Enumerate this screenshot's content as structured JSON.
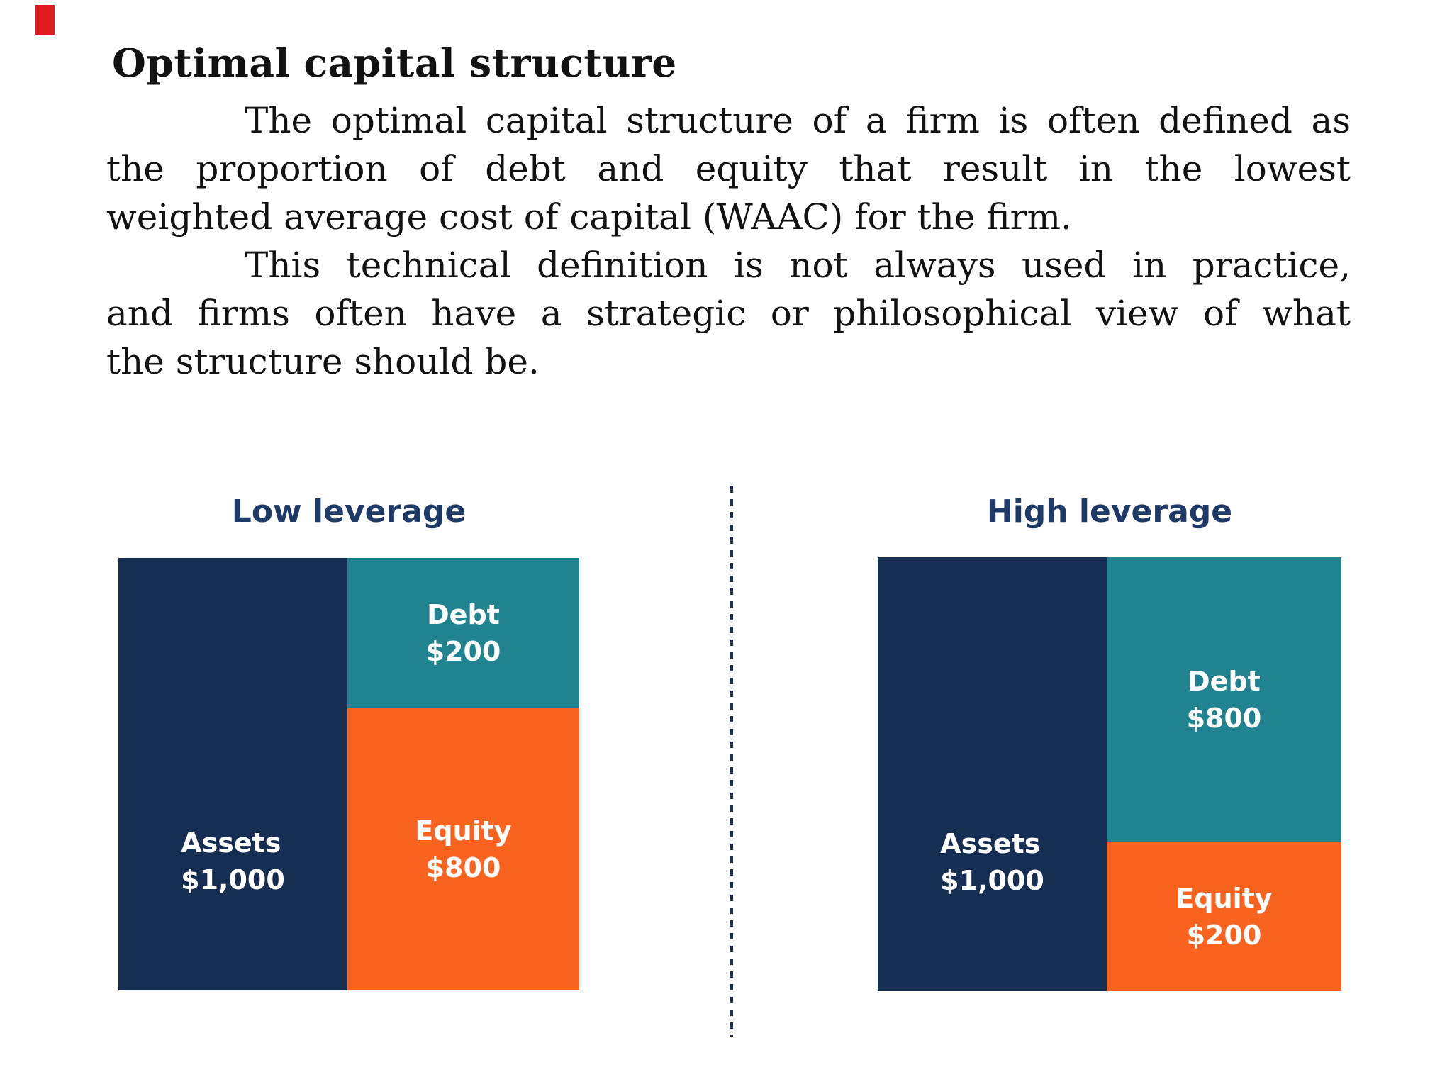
{
  "page": {
    "heading": "Optimal capital structure",
    "para1_lines": [
      "The optimal capital structure of a firm is often defined as",
      "the proportion of debt and equity that result in the lowest",
      "weighted average cost of capital (WAAC) for the firm."
    ],
    "para2_lines": [
      "This technical definition is not always used in practice,",
      "and firms often have a strategic or philosophical view of what",
      "the structure should be."
    ]
  },
  "colors": {
    "accent_red": "#E01B20",
    "navy": "#172E53",
    "teal": "#218290",
    "orange": "#F96320",
    "title_navy": "#1E3A66",
    "divider_navy": "#1E2F55",
    "text_black": "#121212",
    "label_white": "#FFFFFF"
  },
  "diagrams": {
    "low": {
      "title": "Low leverage",
      "assets_label": "Assets",
      "assets_value": "$1,000",
      "debt_label": "Debt",
      "debt_value": "$200",
      "equity_label": "Equity",
      "equity_value": "$800"
    },
    "high": {
      "title": "High leverage",
      "assets_label": "Assets",
      "assets_value": "$1,000",
      "debt_label": "Debt",
      "debt_value": "$800",
      "equity_label": "Equity",
      "equity_value": "$200"
    }
  },
  "chart_data": [
    {
      "type": "bar",
      "title": "Low leverage",
      "categories": [
        "Assets",
        "Debt",
        "Equity"
      ],
      "values": [
        1000,
        200,
        800
      ],
      "annotations": [
        "Assets $1,000",
        "Debt $200",
        "Equity $800"
      ],
      "legend_position": "none"
    },
    {
      "type": "bar",
      "title": "High leverage",
      "categories": [
        "Assets",
        "Debt",
        "Equity"
      ],
      "values": [
        1000,
        800,
        200
      ],
      "annotations": [
        "Assets $1,000",
        "Debt $800",
        "Equity $200"
      ],
      "legend_position": "none"
    }
  ]
}
